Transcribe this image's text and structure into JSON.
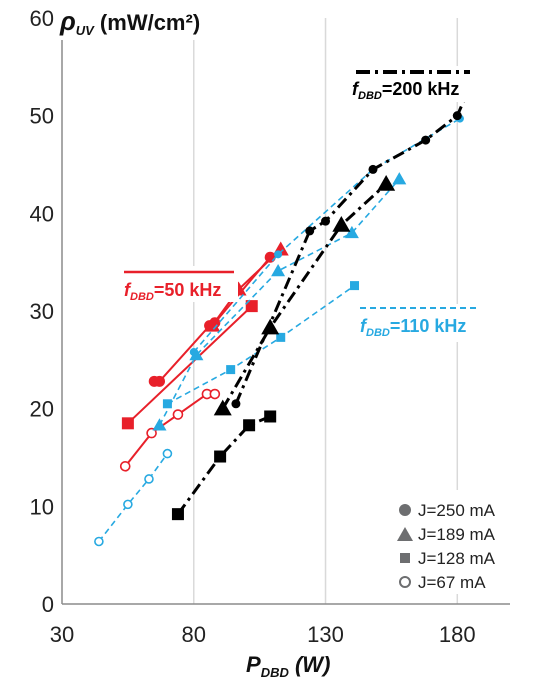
{
  "chart_data": {
    "type": "scatter",
    "xlim": [
      30,
      200
    ],
    "ylim": [
      0,
      60
    ],
    "x_ticks": [
      30,
      80,
      130,
      180
    ],
    "y_ticks": [
      0,
      10,
      20,
      30,
      40,
      50,
      60
    ],
    "ylabel": {
      "main": "ρ",
      "sub": "UV",
      "unit": " (mW/cm²)"
    },
    "xlabel": {
      "main": "P",
      "sub": "DBD",
      "unit": " (W)"
    },
    "grid": "vertical-only",
    "colors": {
      "f50": "#e8202a",
      "f110": "#27a9e1",
      "f200": "#000000"
    },
    "frequency_labels": [
      {
        "key": "f200",
        "prefix": "f",
        "sub": "DBD",
        "text": "=200 kHz",
        "style": "dashdot"
      },
      {
        "key": "f50",
        "prefix": "f",
        "sub": "DBD",
        "text": "=50 kHz",
        "style": "solid"
      },
      {
        "key": "f110",
        "prefix": "f",
        "sub": "DBD",
        "text": "=110 kHz",
        "style": "dashed"
      }
    ],
    "legend": {
      "placement": "bottom-right",
      "entries": [
        {
          "marker": "circle",
          "label": "J=250 mA"
        },
        {
          "marker": "triangle",
          "label": "J=189 mA"
        },
        {
          "marker": "square",
          "label": "J=128 mA"
        },
        {
          "marker": "open-circle",
          "label": "J=67 mA"
        }
      ]
    },
    "series": [
      {
        "freq": "f50",
        "marker": "circle",
        "points": [
          [
            65,
            22.8
          ],
          [
            67,
            22.8
          ],
          [
            86,
            28.5
          ],
          [
            88,
            28.8
          ],
          [
            109,
            35.5
          ]
        ]
      },
      {
        "freq": "f50",
        "marker": "triangle",
        "points": [
          [
            87,
            28.5
          ],
          [
            97,
            32.2
          ],
          [
            113,
            36.3
          ]
        ]
      },
      {
        "freq": "f50",
        "marker": "square",
        "points": [
          [
            55,
            18.5
          ],
          [
            102,
            30.5
          ]
        ]
      },
      {
        "freq": "f50",
        "marker": "open-circle",
        "points": [
          [
            54,
            14.1
          ],
          [
            64,
            17.5
          ],
          [
            74,
            19.4
          ],
          [
            85,
            21.5
          ],
          [
            88,
            21.5
          ]
        ]
      },
      {
        "freq": "f110",
        "marker": "circle",
        "points": [
          [
            80,
            25.8
          ],
          [
            112,
            35.8
          ],
          [
            148,
            44.5
          ],
          [
            181,
            49.7
          ]
        ]
      },
      {
        "freq": "f110",
        "marker": "triangle",
        "points": [
          [
            67,
            18.3
          ],
          [
            81,
            25.5
          ],
          [
            112,
            34.1
          ],
          [
            140,
            38.0
          ],
          [
            158,
            43.5
          ]
        ]
      },
      {
        "freq": "f110",
        "marker": "square",
        "points": [
          [
            70,
            20.5
          ],
          [
            94,
            24.0
          ],
          [
            113,
            27.3
          ],
          [
            141,
            32.6
          ]
        ]
      },
      {
        "freq": "f110",
        "marker": "open-circle",
        "points": [
          [
            44,
            6.4
          ],
          [
            55,
            10.2
          ],
          [
            63,
            12.8
          ],
          [
            70,
            15.4
          ]
        ]
      },
      {
        "freq": "f200",
        "marker": "circle",
        "points": [
          [
            96,
            20.5
          ],
          [
            124,
            38.2
          ],
          [
            130,
            39.2
          ],
          [
            148,
            44.5
          ],
          [
            168,
            47.5
          ],
          [
            180,
            50.0
          ],
          [
            184,
            52.5
          ]
        ]
      },
      {
        "freq": "f200",
        "marker": "triangle",
        "points": [
          [
            91,
            20.0
          ],
          [
            109,
            28.3
          ],
          [
            136,
            38.8
          ],
          [
            153,
            43.0
          ]
        ]
      },
      {
        "freq": "f200",
        "marker": "square",
        "points": [
          [
            74,
            9.2
          ],
          [
            90,
            15.1
          ],
          [
            101,
            18.3
          ],
          [
            109,
            19.2
          ]
        ]
      }
    ]
  }
}
